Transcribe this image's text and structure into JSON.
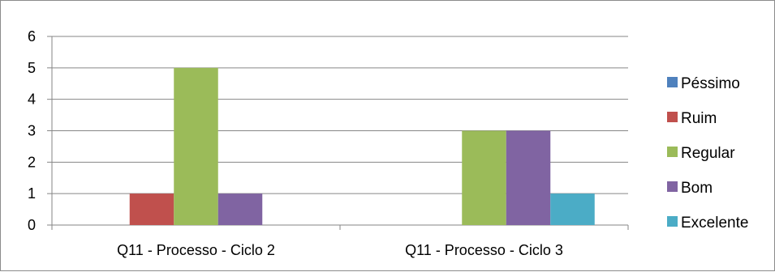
{
  "chart_data": {
    "type": "bar",
    "categories": [
      "Q11 - Processo - Ciclo 2",
      "Q11 - Processo - Ciclo 3"
    ],
    "series": [
      {
        "name": "Péssimo",
        "values": [
          0,
          0
        ],
        "color": "#4f81bd"
      },
      {
        "name": "Ruim",
        "values": [
          1,
          0
        ],
        "color": "#c0504d"
      },
      {
        "name": "Regular",
        "values": [
          5,
          3
        ],
        "color": "#9bbb59"
      },
      {
        "name": "Bom",
        "values": [
          1,
          3
        ],
        "color": "#8064a2"
      },
      {
        "name": "Excelente",
        "values": [
          0,
          1
        ],
        "color": "#4bacc6"
      }
    ],
    "ylim": [
      0,
      6
    ],
    "yticks": [
      0,
      1,
      2,
      3,
      4,
      5,
      6
    ],
    "grid": true,
    "legend_position": "right"
  }
}
